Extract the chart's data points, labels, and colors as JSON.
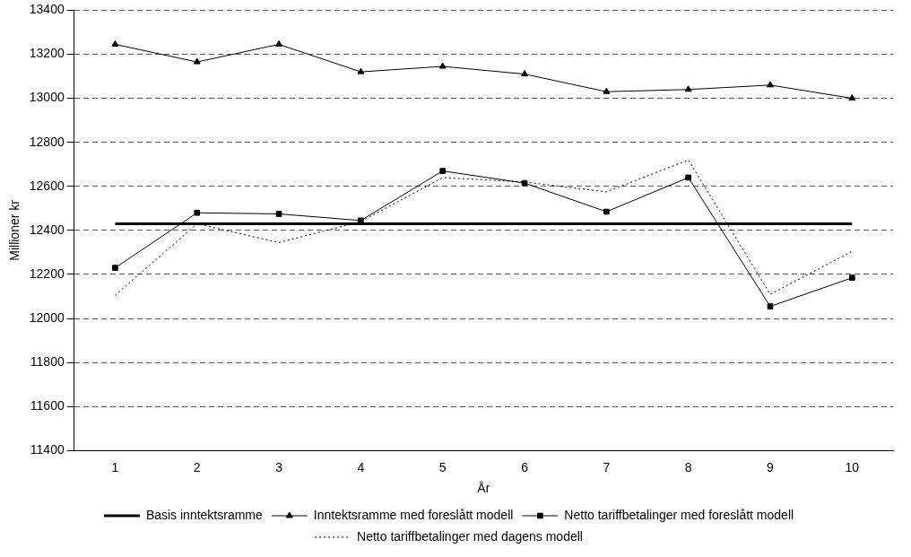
{
  "chart_data": {
    "type": "line",
    "xlabel": "År",
    "ylabel": "Millioner kr",
    "categories": [
      "1",
      "2",
      "3",
      "4",
      "5",
      "6",
      "7",
      "8",
      "9",
      "10"
    ],
    "ylim": [
      11400,
      13400
    ],
    "yticks": [
      11400,
      11600,
      11800,
      12000,
      12200,
      12400,
      12600,
      12800,
      13000,
      13200,
      13400
    ],
    "grid": "y",
    "legend": "bottom",
    "series": [
      {
        "name": "Basis inntektsramme",
        "color": "#000000",
        "marker": "none",
        "line_style": "solid",
        "values": [
          12430,
          12430,
          12430,
          12430,
          12430,
          12430,
          12430,
          12430,
          12430,
          12430
        ]
      },
      {
        "name": "Inntektsramme med foreslått modell",
        "color": "#000000",
        "marker": "triangle",
        "line_style": "solid",
        "values": [
          13245,
          13165,
          13245,
          13120,
          13145,
          13110,
          13030,
          13040,
          13060,
          13000
        ]
      },
      {
        "name": "Netto tariffbetalinger med foreslått modell",
        "color": "#000000",
        "marker": "square",
        "line_style": "solid",
        "values": [
          12230,
          12480,
          12475,
          12445,
          12670,
          12615,
          12485,
          12640,
          12055,
          12185
        ]
      },
      {
        "name": "Netto tariffbetalinger med dagens modell",
        "color": "#000000",
        "marker": "none",
        "line_style": "dotted",
        "values": [
          12105,
          12430,
          12345,
          12440,
          12640,
          12620,
          12575,
          12720,
          12110,
          12305
        ]
      }
    ]
  }
}
